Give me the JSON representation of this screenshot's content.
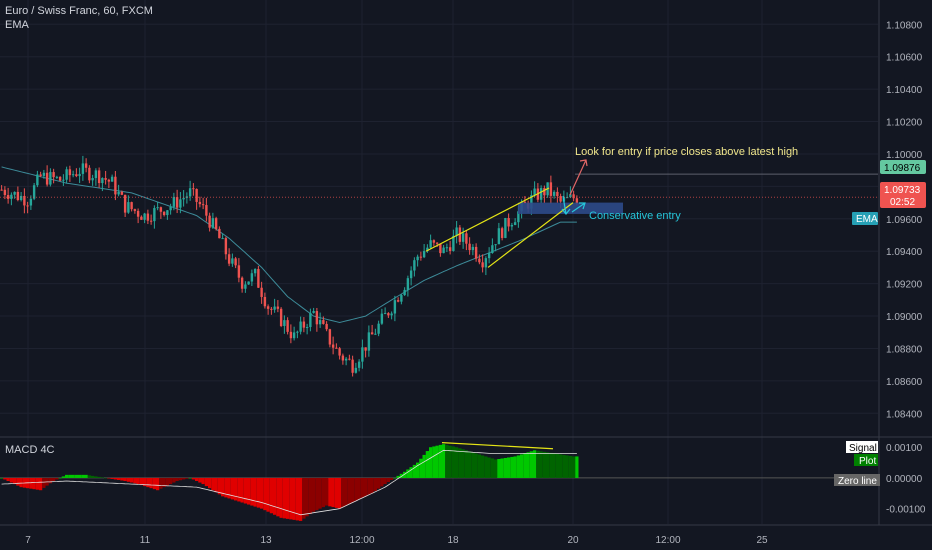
{
  "header": {
    "symbol_line": "Euro / Swiss Franc, 60, FXCM",
    "indicator_label": "EMA"
  },
  "sub_pane": {
    "title": "MACD 4C"
  },
  "annotations": {
    "entry_note": "Look for entry if price closes above latest high",
    "conservative_note": "Conservative entry"
  },
  "price_tags": {
    "level": "1.09876",
    "current": "1.09733",
    "countdown": "02:52",
    "ema": "EMA"
  },
  "macd_tags": {
    "signal": "Signal",
    "plot": "Plot",
    "zero": "Zero line"
  },
  "colors": {
    "background": "#131722",
    "up": "#26a69a",
    "down": "#ef5350",
    "ema": "#3d8b99",
    "trendline": "#e5e516",
    "zone": "#2d4a8a",
    "macd_pos_strong": "#00c800",
    "macd_pos_weak": "#006400",
    "macd_neg_strong": "#e00000",
    "macd_neg_weak": "#8b0000",
    "entry_arrow": "#e06666",
    "conservative_arrow": "#26c6da",
    "level_tag": "#64c8a0",
    "current_tag": "#ef5350"
  },
  "chart_data": [
    {
      "type": "candlestick",
      "title": "Euro / Swiss Franc, 60, FXCM",
      "ylim": [
        1.0826,
        1.1095
      ],
      "y_ticks": [
        "1.10800",
        "1.10600",
        "1.10400",
        "1.10200",
        "1.10000",
        "1.09800",
        "1.09600",
        "1.09400",
        "1.09200",
        "1.09000",
        "1.08800",
        "1.08600",
        "1.08400"
      ],
      "x_ticks": [
        "7",
        "11",
        "13",
        "12:00",
        "18",
        "20",
        "12:00",
        "25"
      ],
      "close_path": [
        [
          0,
          1.0978
        ],
        [
          8,
          1.0972
        ],
        [
          12,
          1.0986
        ],
        [
          18,
          1.0984
        ],
        [
          24,
          1.099
        ],
        [
          30,
          1.0987
        ],
        [
          34,
          1.0982
        ],
        [
          38,
          1.0968
        ],
        [
          44,
          1.0962
        ],
        [
          52,
          1.0968
        ],
        [
          58,
          1.0976
        ],
        [
          62,
          1.0966
        ],
        [
          66,
          1.0952
        ],
        [
          70,
          1.0935
        ],
        [
          74,
          1.0921
        ],
        [
          78,
          1.0925
        ],
        [
          82,
          1.0906
        ],
        [
          86,
          1.0898
        ],
        [
          90,
          1.0887
        ],
        [
          96,
          1.0902
        ],
        [
          100,
          1.0888
        ],
        [
          104,
          1.0876
        ],
        [
          108,
          1.087
        ],
        [
          112,
          1.0882
        ],
        [
          116,
          1.0894
        ],
        [
          120,
          1.0906
        ],
        [
          124,
          1.092
        ],
        [
          128,
          1.0937
        ],
        [
          132,
          1.0944
        ],
        [
          136,
          1.094
        ],
        [
          140,
          1.095
        ],
        [
          144,
          1.0944
        ],
        [
          148,
          1.0935
        ],
        [
          152,
          1.0948
        ],
        [
          156,
          1.0958
        ],
        [
          160,
          1.0966
        ],
        [
          164,
          1.0974
        ],
        [
          168,
          1.0978
        ],
        [
          172,
          1.097
        ],
        [
          176,
          1.0973
        ]
      ],
      "ema_path": [
        [
          0,
          1.0992
        ],
        [
          20,
          1.0982
        ],
        [
          40,
          1.0976
        ],
        [
          60,
          1.0962
        ],
        [
          70,
          1.0948
        ],
        [
          80,
          1.093
        ],
        [
          88,
          1.0912
        ],
        [
          96,
          1.09
        ],
        [
          104,
          1.0896
        ],
        [
          112,
          1.09
        ],
        [
          120,
          1.091
        ],
        [
          130,
          1.0922
        ],
        [
          140,
          1.0931
        ],
        [
          150,
          1.0939
        ],
        [
          160,
          1.0947
        ],
        [
          172,
          1.0958
        ]
      ],
      "horizontal_level": 1.09876,
      "current_price": 1.09733,
      "zone": {
        "from": 1.0963,
        "to": 1.097
      },
      "trendline_upper": [
        [
          1.094,
          1.0979
        ]
      ],
      "trendline_lower": [
        [
          1.093,
          1.097
        ]
      ]
    },
    {
      "type": "histogram",
      "title": "MACD 4C",
      "ylim": [
        -0.0015,
        0.0013
      ],
      "y_ticks": [
        "0.00100",
        "0.00000",
        "-0.00100"
      ],
      "histogram_path": [
        [
          0,
          0.0
        ],
        [
          6,
          -0.0003
        ],
        [
          12,
          -0.0004
        ],
        [
          16,
          -0.0001
        ],
        [
          20,
          0.0001
        ],
        [
          26,
          0.0001
        ],
        [
          32,
          0.0
        ],
        [
          38,
          -0.0001
        ],
        [
          42,
          -0.0002
        ],
        [
          48,
          -0.0004
        ],
        [
          54,
          -0.0001
        ],
        [
          58,
          -0.0
        ],
        [
          62,
          -0.0002
        ],
        [
          68,
          -0.0006
        ],
        [
          74,
          -0.0008
        ],
        [
          80,
          -0.001
        ],
        [
          86,
          -0.0013
        ],
        [
          92,
          -0.0014
        ],
        [
          96,
          -0.0011
        ],
        [
          100,
          -0.0009
        ],
        [
          104,
          -0.001
        ],
        [
          108,
          -0.0008
        ],
        [
          114,
          -0.0005
        ],
        [
          118,
          -0.0002
        ],
        [
          124,
          0.0002
        ],
        [
          128,
          0.0005
        ],
        [
          132,
          0.001
        ],
        [
          136,
          0.0011
        ],
        [
          140,
          0.001
        ],
        [
          146,
          0.0008
        ],
        [
          152,
          0.0006
        ],
        [
          158,
          0.0007
        ],
        [
          164,
          0.0009
        ],
        [
          170,
          0.0008
        ],
        [
          176,
          0.0007
        ]
      ],
      "signal_path": [
        [
          0,
          -0.0002
        ],
        [
          20,
          -0.0001
        ],
        [
          40,
          -0.0002
        ],
        [
          60,
          -0.0003
        ],
        [
          80,
          -0.0008
        ],
        [
          92,
          -0.0012
        ],
        [
          104,
          -0.001
        ],
        [
          118,
          -0.0003
        ],
        [
          128,
          0.0004
        ],
        [
          136,
          0.0009
        ],
        [
          150,
          0.0008
        ],
        [
          164,
          0.0008
        ],
        [
          176,
          0.0008
        ]
      ],
      "divergence_line": [
        0.00115,
        0.00095
      ]
    }
  ]
}
